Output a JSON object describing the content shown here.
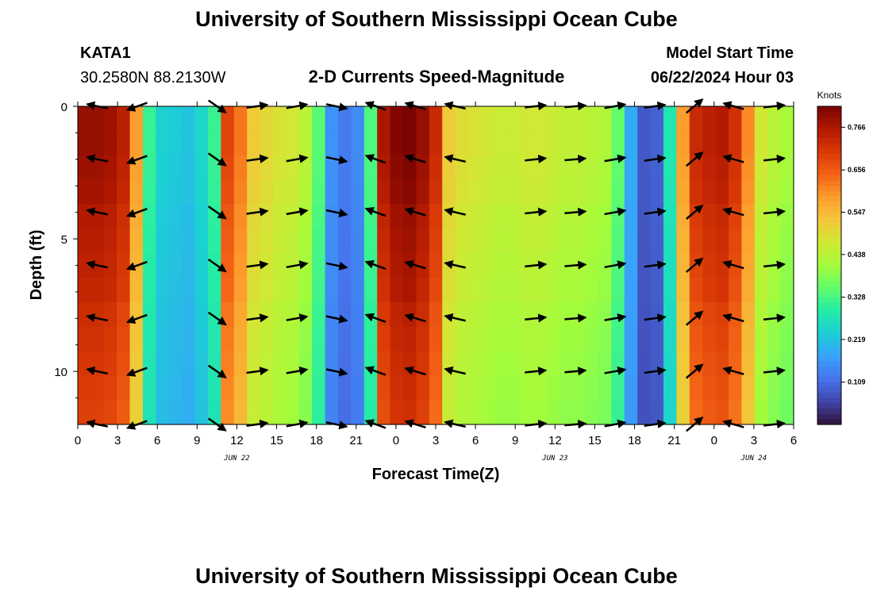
{
  "page": {
    "title_top": "University of Southern Mississippi Ocean Cube",
    "title_bottom": "University of Southern Mississippi Ocean Cube",
    "station_id": "KATA1",
    "coordinates": "30.2580N  88.2130W",
    "model_start_label": "Model Start Time",
    "model_start_time": "06/22/2024 Hour 03"
  },
  "chart_data": {
    "type": "heatmap",
    "title": "2-D Currents Speed-Magnitude",
    "xlabel": "Forecast Time(Z)",
    "ylabel": "Depth (ft)",
    "x_range_hours": [
      0,
      54
    ],
    "y_range_ft": [
      0,
      12
    ],
    "x_ticks": [
      {
        "hour": 0,
        "label": "0"
      },
      {
        "hour": 3,
        "label": "3"
      },
      {
        "hour": 6,
        "label": "6"
      },
      {
        "hour": 9,
        "label": "9"
      },
      {
        "hour": 12,
        "label": "12"
      },
      {
        "hour": 15,
        "label": "15"
      },
      {
        "hour": 18,
        "label": "18"
      },
      {
        "hour": 21,
        "label": "21"
      },
      {
        "hour": 24,
        "label": "0"
      },
      {
        "hour": 27,
        "label": "3"
      },
      {
        "hour": 30,
        "label": "6"
      },
      {
        "hour": 33,
        "label": "9"
      },
      {
        "hour": 36,
        "label": "12"
      },
      {
        "hour": 39,
        "label": "15"
      },
      {
        "hour": 42,
        "label": "18"
      },
      {
        "hour": 45,
        "label": "21"
      },
      {
        "hour": 48,
        "label": "0"
      },
      {
        "hour": 51,
        "label": "3"
      },
      {
        "hour": 54,
        "label": "6"
      }
    ],
    "y_ticks": [
      {
        "depth": 0,
        "label": "0"
      },
      {
        "depth": 5,
        "label": "5"
      },
      {
        "depth": 10,
        "label": "10"
      }
    ],
    "date_labels": [
      {
        "hour": 12,
        "label": "JUN 22"
      },
      {
        "hour": 36,
        "label": "JUN 23"
      },
      {
        "hour": 51,
        "label": "JUN 24"
      }
    ],
    "colorbar": {
      "unit": "Knots",
      "min": 0.0,
      "max": 0.82,
      "ticks": [
        0.109,
        0.219,
        0.328,
        0.438,
        0.547,
        0.656,
        0.766
      ],
      "tick_labels": [
        "0.109",
        "0.219",
        "0.328",
        "0.438",
        "0.547",
        "0.656",
        "0.766"
      ],
      "colors": [
        "#30123b",
        "#4145ab",
        "#4675ed",
        "#39a2fc",
        "#1bcfd4",
        "#24eca6",
        "#61fc6c",
        "#a4fc3b",
        "#d1e834",
        "#f3c63a",
        "#fe9b2d",
        "#f36315",
        "#d93806",
        "#b11901",
        "#7a0402"
      ]
    },
    "speed_by_hour": [
      0.76,
      0.76,
      0.75,
      0.72,
      0.56,
      0.3,
      0.23,
      0.22,
      0.21,
      0.24,
      0.3,
      0.66,
      0.6,
      0.5,
      0.48,
      0.46,
      0.45,
      0.42,
      0.33,
      0.15,
      0.12,
      0.14,
      0.32,
      0.74,
      0.78,
      0.79,
      0.76,
      0.7,
      0.5,
      0.47,
      0.46,
      0.45,
      0.44,
      0.44,
      0.45,
      0.45,
      0.44,
      0.43,
      0.43,
      0.42,
      0.41,
      0.34,
      0.18,
      0.08,
      0.09,
      0.27,
      0.56,
      0.7,
      0.72,
      0.73,
      0.69,
      0.58,
      0.45,
      0.42,
      0.4
    ],
    "depth_factors": [
      1.04,
      1.04,
      1.03,
      1.02,
      1.0,
      0.99,
      0.98,
      0.97,
      0.95,
      0.94,
      0.93,
      0.92,
      0.91
    ],
    "vector_hours": [
      1.5,
      4.5,
      7.5,
      10.5,
      13.5,
      16.5,
      19.5,
      22.5,
      25.5,
      28.5,
      31.5,
      34.5,
      37.5,
      40.5,
      43.5,
      46.5,
      49.5,
      52.5
    ],
    "vector_depths_ft": [
      0.0,
      2.0,
      4.0,
      6.0,
      8.0,
      10.0,
      12.0
    ],
    "vector_angles_deg": [
      -168,
      160,
      null,
      35,
      -8,
      -10,
      12,
      -160,
      -163,
      -167,
      null,
      -6,
      -5,
      -10,
      -8,
      -40,
      -164,
      -6
    ]
  }
}
